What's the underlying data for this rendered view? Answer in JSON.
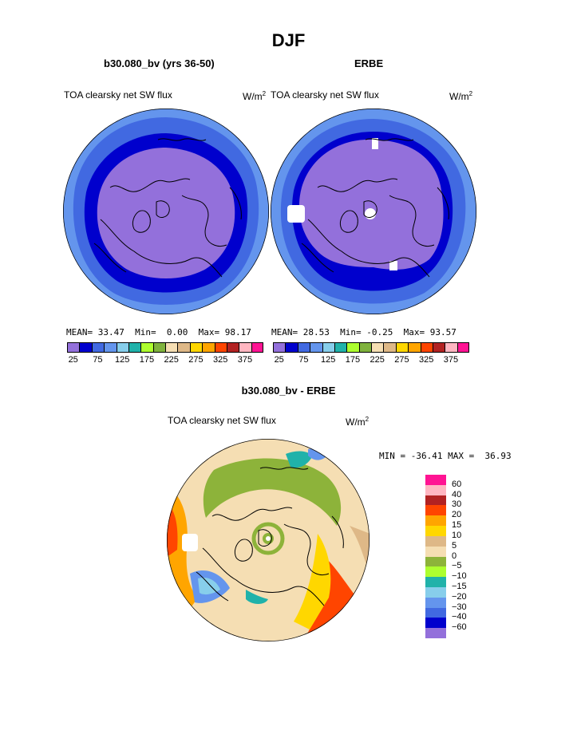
{
  "figure": {
    "title": "DJF"
  },
  "panels": {
    "model": {
      "title": "b30.080_bv (yrs 36-50)",
      "label_left": "TOA clearsky net SW flux",
      "label_right": "W/m",
      "label_right_sup": "2",
      "mean_label": "MEAN=",
      "mean": "33.47",
      "min_label": "Min=",
      "min": "0.00",
      "max_label": "Max=",
      "max": "98.17"
    },
    "obs": {
      "title": "ERBE",
      "label_left": "TOA clearsky net SW flux",
      "label_right": "W/m",
      "label_right_sup": "2",
      "mean_label": "MEAN=",
      "mean": "28.53",
      "min_label": "Min=",
      "min": "-0.25",
      "max_label": "Max=",
      "max": "93.57"
    },
    "diff": {
      "title": "b30.080_bv - ERBE",
      "label_left": "TOA clearsky net SW flux",
      "label_right": "W/m",
      "label_right_sup": "2",
      "minmax": "MIN = -36.41 MAX =  36.93"
    }
  },
  "chart_data": [
    {
      "type": "heatmap",
      "name": "b30.080_bv (yrs 36-50)",
      "projection": "north polar stereographic",
      "colorbar": {
        "ticks": [
          "25",
          "75",
          "125",
          "175",
          "225",
          "275",
          "325",
          "375"
        ],
        "colors": [
          "#9370DB",
          "#0000CD",
          "#4169E1",
          "#6495ED",
          "#87CEEB",
          "#20B2AA",
          "#ADFF2F",
          "#7FB23D",
          "#F5DEB3",
          "#DEB887",
          "#FFD700",
          "#FFA500",
          "#FF4500",
          "#B22222",
          "#FFB6C1",
          "#FF1493"
        ]
      },
      "zones": [
        {
          "level": "25",
          "color": "#9370DB",
          "extent": "interior polar cap"
        },
        {
          "level": "50",
          "color": "#0000CD",
          "extent": "ring around cap"
        },
        {
          "level": "75",
          "color": "#4169E1",
          "extent": "outer ring"
        },
        {
          "level": "100",
          "color": "#6495ED",
          "extent": "outer edge"
        }
      ],
      "stats": {
        "mean": 33.47,
        "min": 0.0,
        "max": 98.17
      }
    },
    {
      "type": "heatmap",
      "name": "ERBE",
      "projection": "north polar stereographic",
      "colorbar": {
        "ticks": [
          "25",
          "75",
          "125",
          "175",
          "225",
          "275",
          "325",
          "375"
        ],
        "colors": [
          "#9370DB",
          "#0000CD",
          "#4169E1",
          "#6495ED",
          "#87CEEB",
          "#20B2AA",
          "#ADFF2F",
          "#7FB23D",
          "#F5DEB3",
          "#DEB887",
          "#FFD700",
          "#FFA500",
          "#FF4500",
          "#B22222",
          "#FFB6C1",
          "#FF1493"
        ]
      },
      "stats": {
        "mean": 28.53,
        "min": -0.25,
        "max": 93.57
      }
    },
    {
      "type": "heatmap",
      "name": "b30.080_bv - ERBE",
      "projection": "north polar stereographic",
      "colorbar": {
        "ticks": [
          "60",
          "40",
          "30",
          "20",
          "15",
          "10",
          "5",
          "0",
          "-5",
          "-10",
          "-15",
          "-20",
          "-30",
          "-40",
          "-60"
        ],
        "colors": [
          "#FF1493",
          "#FFB6C1",
          "#B22222",
          "#FF4500",
          "#FFA500",
          "#FFD700",
          "#DEB887",
          "#F5DEB3",
          "#8DB33A",
          "#ADFF2F",
          "#20B2AA",
          "#87CEEB",
          "#6495ED",
          "#4169E1",
          "#0000CD",
          "#9370DB"
        ]
      },
      "stats": {
        "min": -36.41,
        "max": 36.93
      }
    }
  ]
}
